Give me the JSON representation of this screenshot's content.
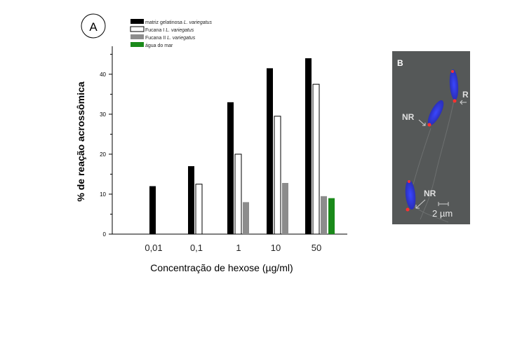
{
  "panel_a_label": "A",
  "panel_b_label": "B",
  "chart_data": {
    "type": "bar",
    "categories": [
      "0,01",
      "0,1",
      "1",
      "10",
      "50"
    ],
    "series": [
      {
        "name_prefix": "matriz gelatinosa ",
        "name_species": "L. variegatus",
        "color": "#000000",
        "values": [
          12,
          17,
          33,
          41.5,
          44
        ]
      },
      {
        "name_prefix": "Fucana I ",
        "name_species": "L. variegatus",
        "color": "#ffffff",
        "values": [
          null,
          12.5,
          20,
          29.5,
          37.5
        ]
      },
      {
        "name_prefix": "Fucana II ",
        "name_species": "L. variegatus",
        "color": "#8c8c8c",
        "values": [
          null,
          null,
          8,
          12.8,
          9.5
        ]
      },
      {
        "name_prefix": "água do mar",
        "name_species": "",
        "color": "#1a8a1a",
        "values": [
          null,
          null,
          null,
          null,
          9
        ]
      }
    ],
    "y_ticks": [
      "0",
      "10",
      "20",
      "30",
      "40"
    ],
    "ylim": [
      0,
      47
    ],
    "ylabel": "% de reação acrossômica",
    "xlabel": "Concentração de hexose (µg/ml)"
  },
  "micrograph": {
    "labels": [
      "R",
      "NR",
      "NR"
    ],
    "scale_bar": "2 µm"
  }
}
